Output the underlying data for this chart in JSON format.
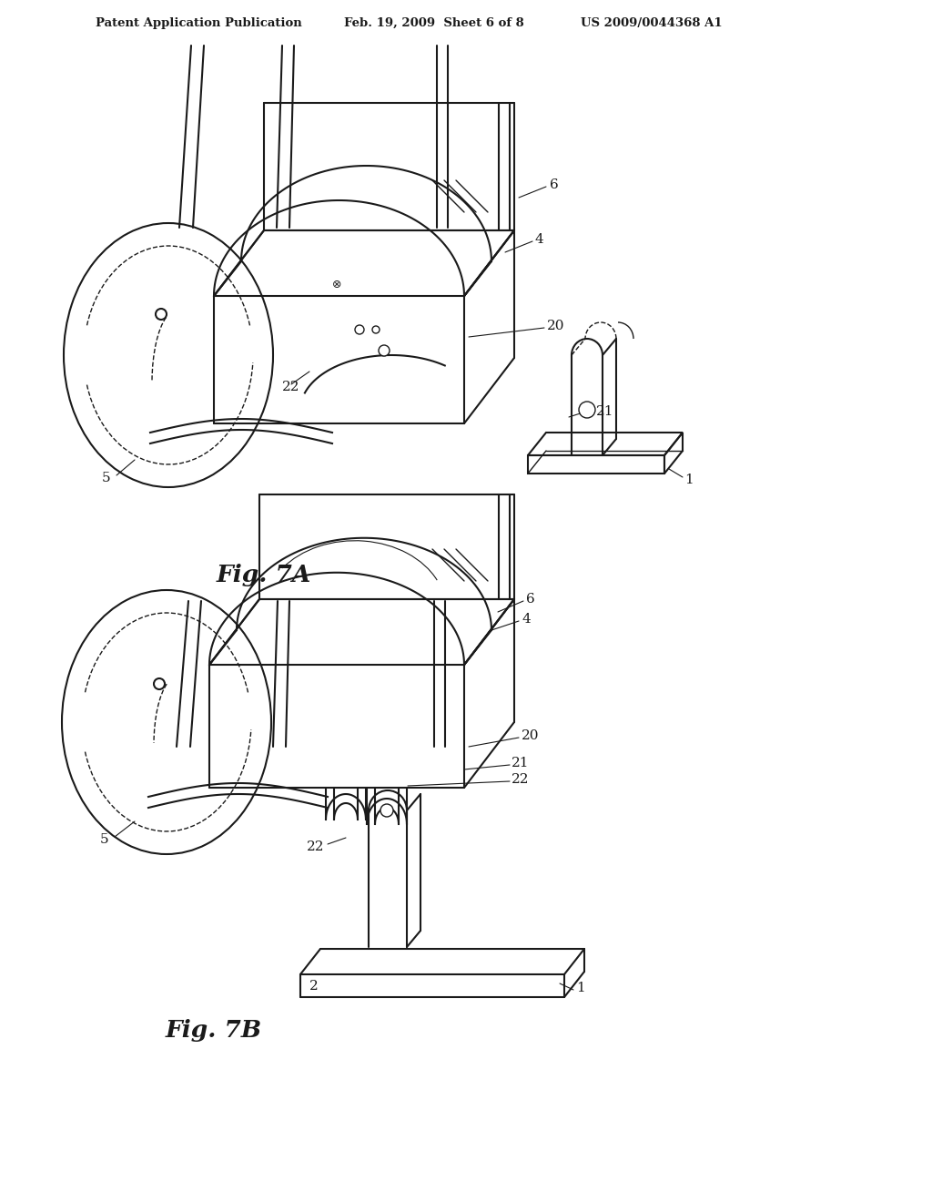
{
  "bg_color": "#ffffff",
  "header_left": "Patent Application Publication",
  "header_mid": "Feb. 19, 2009  Sheet 6 of 8",
  "header_right": "US 2009/0044368 A1",
  "fig7a_label": "Fig. 7A",
  "fig7b_label": "Fig. 7B",
  "line_color": "#1a1a1a",
  "line_width": 1.5,
  "dashed_lw": 1.0,
  "thin_lw": 0.8
}
